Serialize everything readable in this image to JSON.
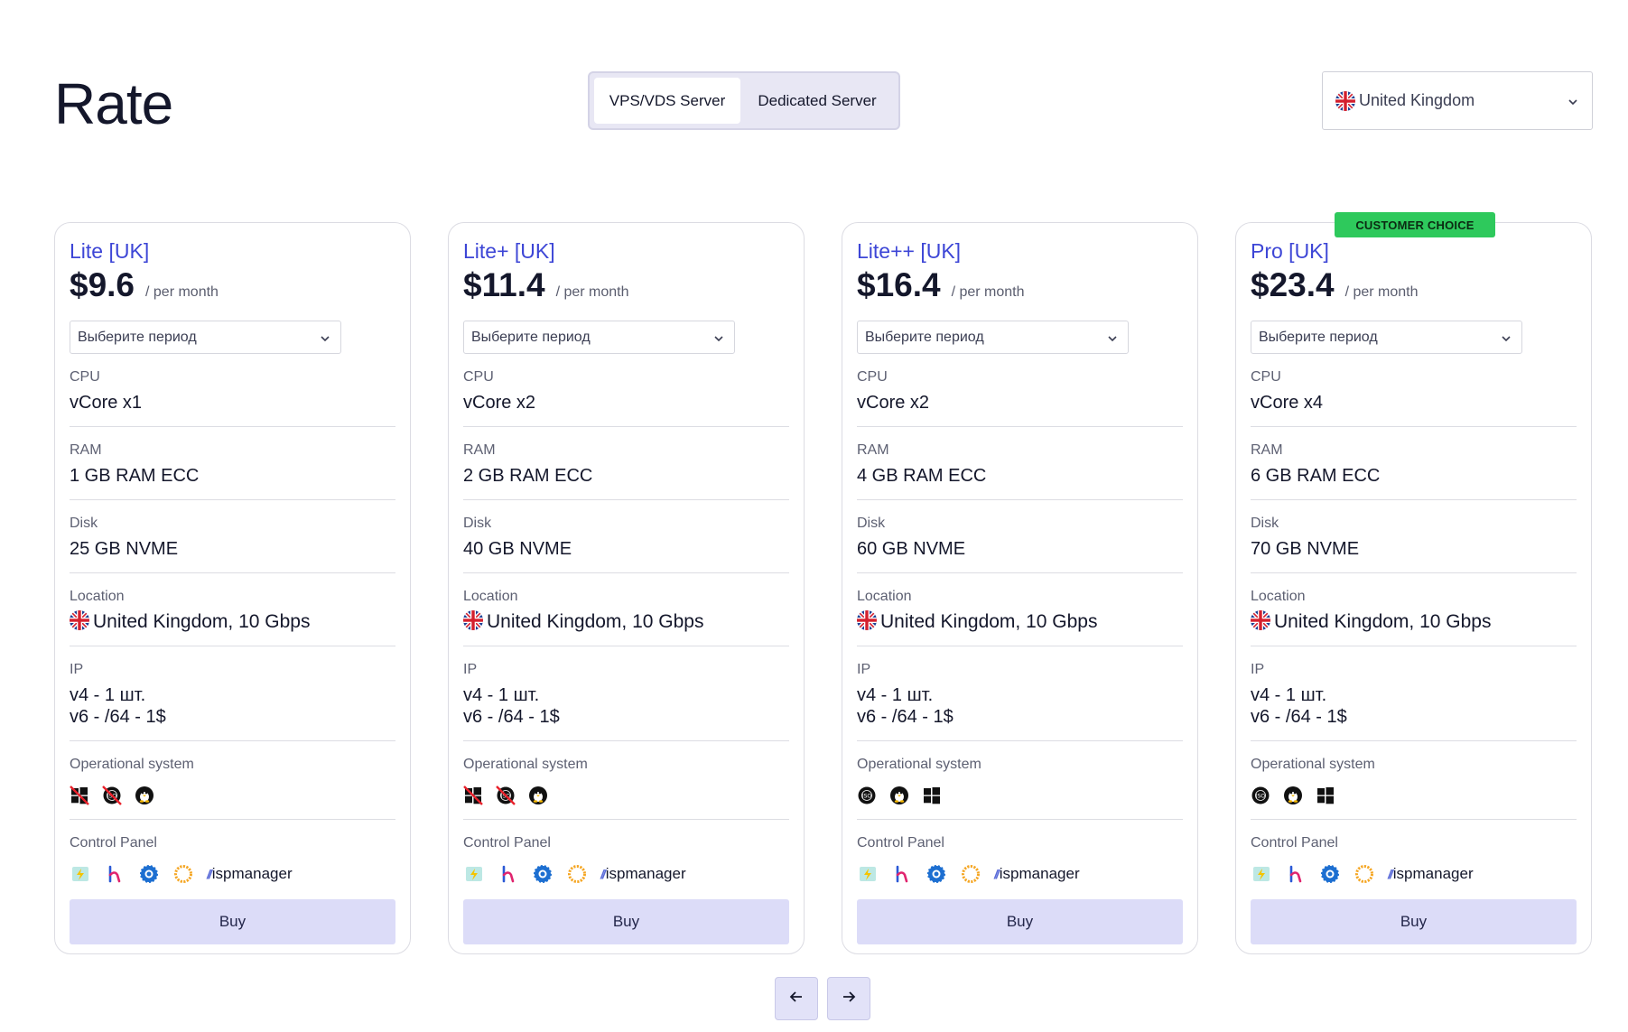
{
  "page": {
    "title": "Rate"
  },
  "server_type": {
    "options": [
      "VPS/VDS Server",
      "Dedicated Server"
    ],
    "selected": "VPS/VDS Server"
  },
  "country_select": {
    "value": "United Kingdom",
    "flag": "uk-flag-icon"
  },
  "colors": {
    "accent": "#3d46d6",
    "badge": "#2ec95c",
    "button": "#dcdcf8"
  },
  "plans": [
    {
      "name": "Lite [UK]",
      "price": "$9.6",
      "per": "/ per month",
      "period_placeholder": "Выберите период",
      "cpu_label": "CPU",
      "cpu": "vCore x1",
      "ram_label": "RAM",
      "ram": "1 GB RAM ECC",
      "disk_label": "Disk",
      "disk": "25 GB NVME",
      "location_label": "Location",
      "location": "United Kingdom, 10 Gbps",
      "ip_label": "IP",
      "ip_v4": "v4 - 1 шт.",
      "ip_v6": "v6 - /64 - 1$",
      "os_label": "Operational system",
      "os": [
        "windows-disabled-icon",
        "iso-disabled-icon",
        "linux-icon"
      ],
      "cp_label": "Control Panel",
      "cp_brand": "ispmanager",
      "buy": "Buy"
    },
    {
      "name": "Lite+ [UK]",
      "price": "$11.4",
      "per": "/ per month",
      "period_placeholder": "Выберите период",
      "cpu_label": "CPU",
      "cpu": "vCore x2",
      "ram_label": "RAM",
      "ram": "2 GB RAM ECC",
      "disk_label": "Disk",
      "disk": "40 GB NVME",
      "location_label": "Location",
      "location": "United Kingdom, 10 Gbps",
      "ip_label": "IP",
      "ip_v4": "v4 - 1 шт.",
      "ip_v6": "v6 - /64 - 1$",
      "os_label": "Operational system",
      "os": [
        "windows-disabled-icon",
        "iso-disabled-icon",
        "linux-icon"
      ],
      "cp_label": "Control Panel",
      "cp_brand": "ispmanager",
      "buy": "Buy"
    },
    {
      "name": "Lite++ [UK]",
      "price": "$16.4",
      "per": "/ per month",
      "period_placeholder": "Выберите период",
      "cpu_label": "CPU",
      "cpu": "vCore x2",
      "ram_label": "RAM",
      "ram": "4 GB RAM ECC",
      "disk_label": "Disk",
      "disk": "60 GB NVME",
      "location_label": "Location",
      "location": "United Kingdom, 10 Gbps",
      "ip_label": "IP",
      "ip_v4": "v4 - 1 шт.",
      "ip_v6": "v6 - /64 - 1$",
      "os_label": "Operational system",
      "os": [
        "iso-icon",
        "linux-icon",
        "windows-icon"
      ],
      "cp_label": "Control Panel",
      "cp_brand": "ispmanager",
      "buy": "Buy"
    },
    {
      "name": "Pro [UK]",
      "price": "$23.4",
      "per": "/ per month",
      "badge": "CUSTOMER CHOICE",
      "period_placeholder": "Выберите период",
      "cpu_label": "CPU",
      "cpu": "vCore x4",
      "ram_label": "RAM",
      "ram": "6 GB RAM ECC",
      "disk_label": "Disk",
      "disk": "70 GB NVME",
      "location_label": "Location",
      "location": "United Kingdom, 10 Gbps",
      "ip_label": "IP",
      "ip_v4": "v4 - 1 шт.",
      "ip_v6": "v6 - /64 - 1$",
      "os_label": "Operational system",
      "os": [
        "iso-icon",
        "linux-icon",
        "windows-icon"
      ],
      "cp_label": "Control Panel",
      "cp_brand": "ispmanager",
      "buy": "Buy"
    }
  ],
  "pagination": {
    "prev": "arrow-left-icon",
    "next": "arrow-right-icon"
  }
}
